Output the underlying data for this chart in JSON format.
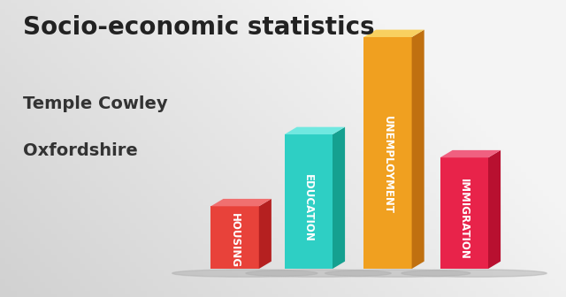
{
  "title": "Socio-economic statistics",
  "subtitle1": "Temple Cowley",
  "subtitle2": "Oxfordshire",
  "categories": [
    "HOUSING",
    "EDUCATION",
    "UNEMPLOYMENT",
    "IMMIGRATION"
  ],
  "values": [
    0.27,
    0.58,
    1.0,
    0.48
  ],
  "bar_colors": [
    "#e8423a",
    "#2ecfc4",
    "#f0a020",
    "#e8234a"
  ],
  "bar_colors_dark": [
    "#b52020",
    "#15a090",
    "#c07010",
    "#b81030"
  ],
  "bar_colors_top": [
    "#f07070",
    "#70e8e0",
    "#f8d060",
    "#f06080"
  ],
  "background_color": "#e0e0e0",
  "title_color": "#222222",
  "subtitle_color": "#333333",
  "title_fontsize": 20,
  "subtitle_fontsize": 14,
  "label_fontsize": 8.5,
  "figwidth": 6.4,
  "figheight": 3.36,
  "dpi": 100
}
